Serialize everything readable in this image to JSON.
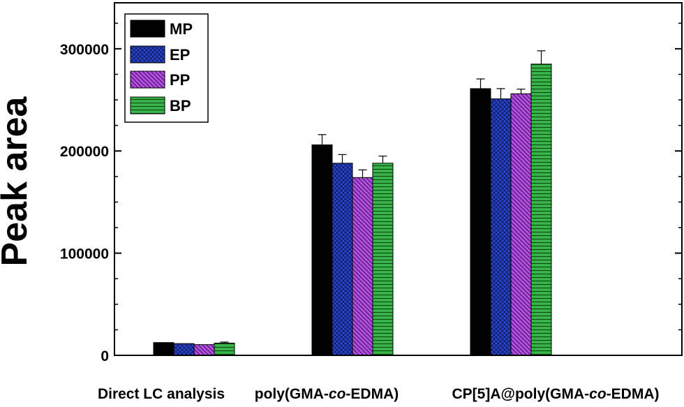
{
  "chart_data": {
    "type": "bar",
    "ylabel": "Peak area",
    "xlabel": "",
    "ylim": [
      0,
      345000
    ],
    "yticks": [
      0,
      100000,
      200000,
      300000
    ],
    "ytick_labels": [
      "0",
      "100000",
      "200000",
      "300000"
    ],
    "minor_ticks": true,
    "grid": false,
    "legend_position": "top-left",
    "categories": [
      {
        "parts": [
          "Direct LC analysis"
        ]
      },
      {
        "parts": [
          "poly(GMA-",
          "co",
          "-EDMA)"
        ]
      },
      {
        "parts": [
          "CP[5]A@poly(GMA-",
          "co",
          "-EDMA)"
        ]
      }
    ],
    "series": [
      {
        "name": "MP",
        "color": "#000000",
        "pattern": "solid",
        "values": [
          12500,
          206000,
          261000
        ],
        "errors": [
          0,
          10000,
          9500
        ]
      },
      {
        "name": "EP",
        "color": "#2b47c8",
        "pattern": "crosshatch",
        "values": [
          11500,
          188000,
          251000
        ],
        "errors": [
          0,
          8500,
          10000
        ]
      },
      {
        "name": "PP",
        "color": "#b44fe0",
        "pattern": "diagonal",
        "values": [
          10500,
          174000,
          256000
        ],
        "errors": [
          0,
          7500,
          4500
        ]
      },
      {
        "name": "BP",
        "color": "#39b64a",
        "pattern": "horizontal",
        "values": [
          12000,
          188000,
          285000
        ],
        "errors": [
          1000,
          7000,
          13000
        ]
      }
    ]
  }
}
